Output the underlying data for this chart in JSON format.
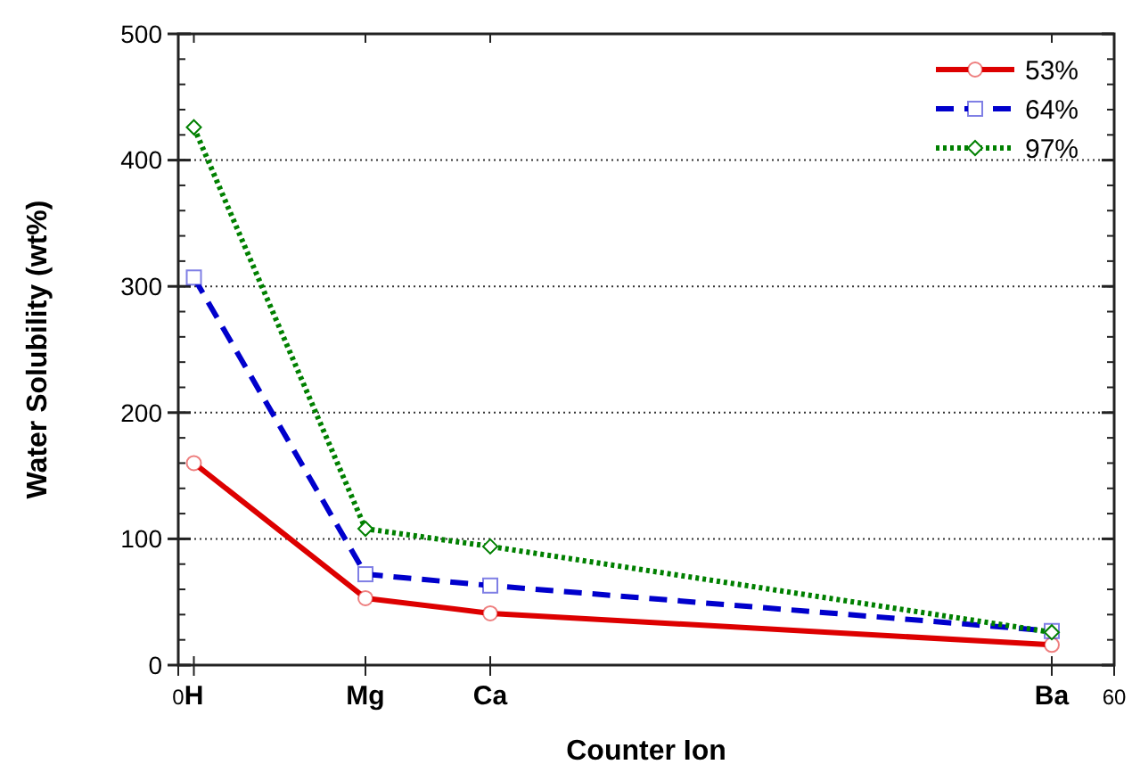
{
  "chart_data": {
    "type": "line",
    "xlabel": "Counter Ion",
    "ylabel": "Water Solubility (wt%)",
    "x": [
      1,
      12,
      20,
      56
    ],
    "xlim": [
      0,
      60
    ],
    "xticks": [
      0,
      {
        "value": 1,
        "label": "H"
      },
      {
        "value": 12,
        "label": "Mg"
      },
      {
        "value": 20,
        "label": "Ca"
      },
      {
        "value": 56,
        "label": "Ba"
      },
      60
    ],
    "ylim": [
      0,
      500
    ],
    "yticks": [
      0,
      100,
      200,
      300,
      400,
      500
    ],
    "grid": "y",
    "legend": "top right",
    "series": [
      {
        "name": "53%",
        "color": "#dd0000",
        "values": [
          160,
          53,
          41,
          16
        ],
        "marker": "circle",
        "line_style": "solid"
      },
      {
        "name": "64%",
        "color": "#0000cc",
        "values": [
          307,
          72,
          63,
          27
        ],
        "marker": "square",
        "line_style": "dashed"
      },
      {
        "name": "97%",
        "color": "#008000",
        "values": [
          426,
          108,
          94,
          26
        ],
        "marker": "diamond",
        "line_style": "dotted"
      }
    ]
  }
}
